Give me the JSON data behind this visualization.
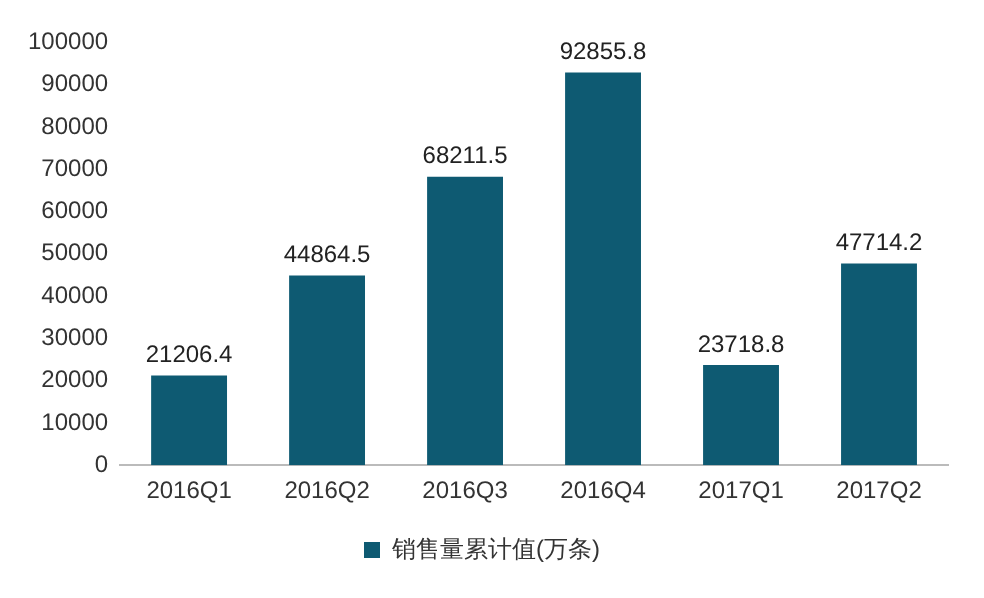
{
  "chart_data": {
    "type": "bar",
    "categories": [
      "2016Q1",
      "2016Q2",
      "2016Q3",
      "2016Q4",
      "2017Q1",
      "2017Q2"
    ],
    "series": [
      {
        "name": "销售量累计值(万条)",
        "color": "#0e5a72",
        "values": [
          21206.4,
          44864.5,
          68211.5,
          92855.8,
          23718.8,
          47714.2
        ]
      }
    ],
    "ylim": [
      0,
      100000
    ],
    "yticks": [
      0,
      10000,
      20000,
      30000,
      40000,
      50000,
      60000,
      70000,
      80000,
      90000,
      100000
    ],
    "data_labels": true,
    "legend": "bottom",
    "grid": false
  }
}
